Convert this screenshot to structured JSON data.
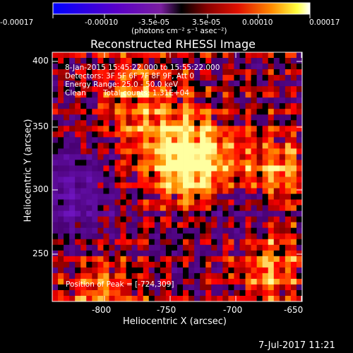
{
  "title": "Reconstructed RHESSI Image",
  "colorbar": {
    "ticks": [
      "-0.00017",
      "-0.00010",
      "-3.5e-05",
      "3.5e-05",
      "0.00010",
      "0.00017"
    ],
    "unit_label": "(photons cm⁻² s⁻¹ asec⁻²)"
  },
  "overlay": {
    "time_range": "8-Jan-2015 15:45:22.000 to 15:55:22.000",
    "detectors": "Detectors: 3F 5F 6F 7F 8F 9F, Att 0",
    "energy": "Energy Range: 25.0 - 50.0 keV",
    "method": "Clean",
    "total_counts": "Total counts: 1.31E+04",
    "peak": "Position of Peak = [-724,309]"
  },
  "x_axis": {
    "label": "Heliocentric X (arcsec)",
    "ticks": [
      "-800",
      "-750",
      "-700",
      "-650"
    ]
  },
  "y_axis": {
    "label": "Heliocentric Y (arcsec)",
    "ticks": [
      "400",
      "350",
      "300",
      "250"
    ]
  },
  "timestamp": "7-Jul-2017 11:21"
}
